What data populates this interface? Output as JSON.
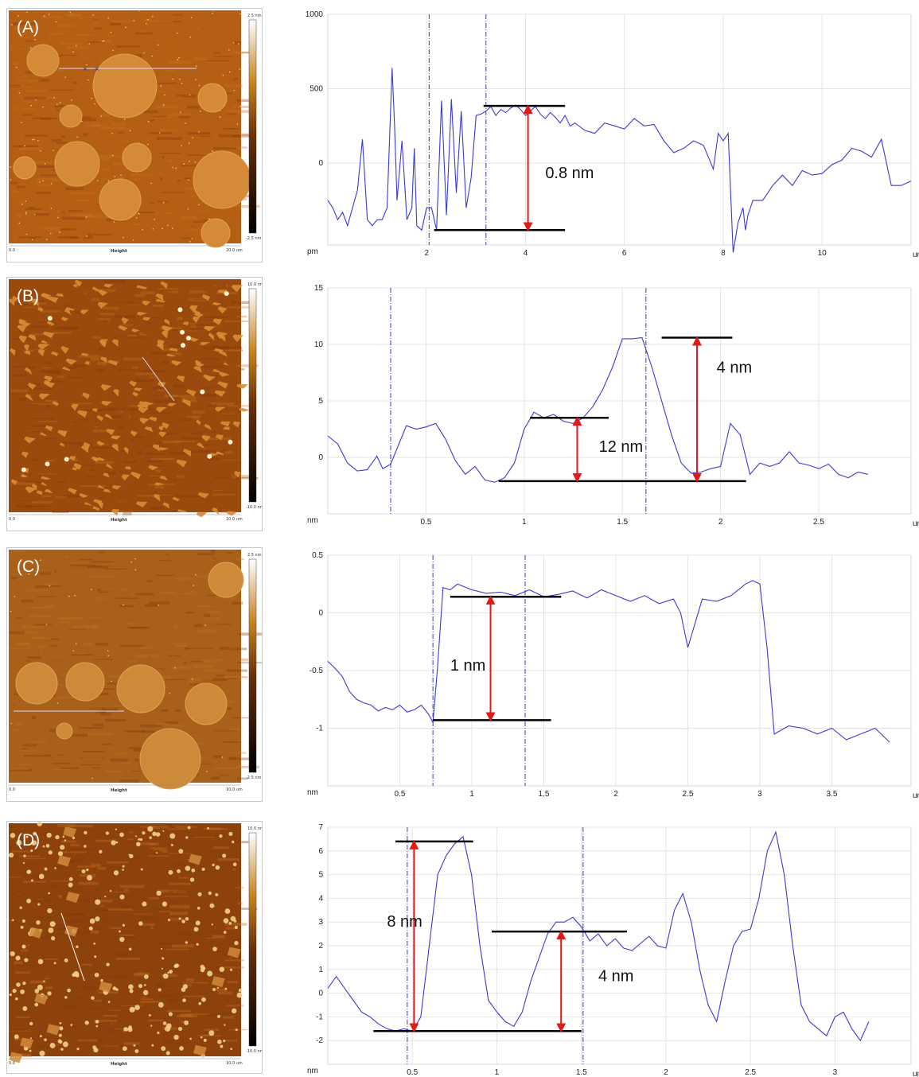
{
  "panels": [
    {
      "label": "(A)",
      "afm": {
        "image_label": "Height",
        "scale_top": "2.5 nm",
        "scale_bottom": "-2.5 nm",
        "axis_start": "0.0",
        "axis_end": "20.0 um",
        "tone": "flat"
      },
      "chart_data": {
        "type": "line",
        "y_unit": "pm",
        "x_unit": "um",
        "xlim": [
          0,
          11.8
        ],
        "ylim": [
          -550,
          1000
        ],
        "xticks": [
          2,
          4,
          6,
          8,
          10
        ],
        "yticks": [
          0,
          500,
          1000
        ],
        "x": [
          0.0,
          0.1,
          0.2,
          0.3,
          0.4,
          0.5,
          0.6,
          0.7,
          0.8,
          0.9,
          1.0,
          1.1,
          1.2,
          1.3,
          1.35,
          1.4,
          1.5,
          1.6,
          1.7,
          1.75,
          1.8,
          1.9,
          2.0,
          2.1,
          2.2,
          2.3,
          2.4,
          2.5,
          2.6,
          2.7,
          2.8,
          2.9,
          3.0,
          3.1,
          3.2,
          3.3,
          3.4,
          3.5,
          3.6,
          3.7,
          3.8,
          3.9,
          4.0,
          4.1,
          4.2,
          4.3,
          4.4,
          4.5,
          4.6,
          4.7,
          4.8,
          4.9,
          5.0,
          5.2,
          5.4,
          5.6,
          5.8,
          6.0,
          6.2,
          6.4,
          6.6,
          6.8,
          7.0,
          7.2,
          7.4,
          7.6,
          7.8,
          7.9,
          8.0,
          8.1,
          8.2,
          8.3,
          8.4,
          8.45,
          8.5,
          8.6,
          8.8,
          9.0,
          9.2,
          9.4,
          9.6,
          9.8,
          10.0,
          10.2,
          10.4,
          10.6,
          10.8,
          11.0,
          11.2,
          11.4,
          11.6,
          11.8
        ],
        "y": [
          -250,
          -300,
          -380,
          -330,
          -420,
          -300,
          -180,
          160,
          -380,
          -420,
          -380,
          -380,
          -300,
          640,
          250,
          -250,
          150,
          -380,
          -300,
          100,
          -420,
          -450,
          -300,
          -300,
          -450,
          420,
          -350,
          430,
          -200,
          350,
          -300,
          -100,
          320,
          330,
          350,
          380,
          320,
          360,
          340,
          370,
          390,
          360,
          320,
          350,
          380,
          330,
          300,
          340,
          310,
          270,
          320,
          250,
          270,
          220,
          200,
          270,
          250,
          230,
          300,
          250,
          260,
          150,
          70,
          100,
          150,
          120,
          -40,
          200,
          150,
          200,
          -600,
          -400,
          -300,
          -450,
          -350,
          -250,
          -250,
          -150,
          -80,
          -150,
          -50,
          -80,
          -70,
          -10,
          20,
          100,
          80,
          40,
          160,
          -150,
          -150,
          -120
        ],
        "annotations": [
          {
            "text": "0.8 nm"
          }
        ]
      }
    },
    {
      "label": "(B)",
      "afm": {
        "image_label": "Height",
        "scale_top": "10.0 nm",
        "scale_bottom": "-10.0 nm",
        "axis_start": "0.0",
        "axis_end": "10.0 um",
        "tone": "flakes"
      },
      "chart_data": {
        "type": "line",
        "y_unit": "nm",
        "x_unit": "um",
        "xlim": [
          0,
          2.97
        ],
        "ylim": [
          -5,
          15
        ],
        "xticks": [
          0.5,
          1,
          1.5,
          2,
          2.5
        ],
        "yticks": [
          0,
          5,
          10,
          15
        ],
        "x": [
          0.0,
          0.05,
          0.1,
          0.15,
          0.2,
          0.25,
          0.28,
          0.32,
          0.4,
          0.45,
          0.5,
          0.55,
          0.6,
          0.65,
          0.7,
          0.75,
          0.8,
          0.85,
          0.9,
          0.95,
          1.0,
          1.05,
          1.1,
          1.15,
          1.2,
          1.25,
          1.3,
          1.35,
          1.4,
          1.45,
          1.5,
          1.55,
          1.6,
          1.65,
          1.7,
          1.75,
          1.8,
          1.85,
          1.9,
          1.95,
          2.0,
          2.05,
          2.1,
          2.15,
          2.2,
          2.25,
          2.3,
          2.35,
          2.4,
          2.45,
          2.5,
          2.55,
          2.6,
          2.65,
          2.7,
          2.75
        ],
        "y": [
          1.9,
          1.2,
          -0.5,
          -1.2,
          -1.1,
          0.1,
          -1.0,
          -0.6,
          2.8,
          2.5,
          2.7,
          3.0,
          1.6,
          -0.3,
          -1.5,
          -0.8,
          -2.0,
          -2.2,
          -1.8,
          -0.5,
          2.5,
          4.0,
          3.5,
          3.8,
          3.2,
          3.0,
          3.5,
          4.5,
          6.0,
          8.0,
          10.5,
          10.5,
          10.6,
          8.0,
          5.0,
          2.0,
          -0.5,
          -1.4,
          -1.3,
          -1.0,
          -0.8,
          3.0,
          2.0,
          -1.5,
          -0.5,
          -0.8,
          -0.5,
          0.5,
          -0.5,
          -0.7,
          -1.0,
          -0.6,
          -1.5,
          -1.8,
          -1.3,
          -1.5
        ],
        "annotations": [
          {
            "text": "12 nm"
          },
          {
            "text": "4 nm"
          }
        ]
      }
    },
    {
      "label": "(C)",
      "afm": {
        "image_label": "Height",
        "scale_top": "2.5 nm",
        "scale_bottom": "-2.5 nm",
        "axis_start": "0.0",
        "axis_end": "10.0 um",
        "tone": "islands"
      },
      "chart_data": {
        "type": "line",
        "y_unit": "nm",
        "x_unit": "um",
        "xlim": [
          0,
          4.05
        ],
        "ylim": [
          -1.5,
          0.5
        ],
        "xticks": [
          0.5,
          1,
          1.5,
          2,
          2.5,
          3,
          3.5
        ],
        "yticks": [
          -1,
          -0.5,
          0,
          0.5
        ],
        "x": [
          0.0,
          0.05,
          0.1,
          0.15,
          0.2,
          0.25,
          0.3,
          0.35,
          0.4,
          0.45,
          0.5,
          0.55,
          0.6,
          0.65,
          0.7,
          0.73,
          0.76,
          0.8,
          0.85,
          0.9,
          1.0,
          1.1,
          1.2,
          1.3,
          1.4,
          1.5,
          1.6,
          1.7,
          1.8,
          1.9,
          2.0,
          2.1,
          2.2,
          2.3,
          2.4,
          2.45,
          2.5,
          2.6,
          2.7,
          2.8,
          2.9,
          2.95,
          3.0,
          3.05,
          3.1,
          3.2,
          3.3,
          3.4,
          3.5,
          3.6,
          3.7,
          3.8,
          3.9
        ],
        "y": [
          -0.42,
          -0.48,
          -0.55,
          -0.68,
          -0.75,
          -0.78,
          -0.8,
          -0.85,
          -0.82,
          -0.84,
          -0.8,
          -0.86,
          -0.84,
          -0.8,
          -0.88,
          -0.95,
          -0.5,
          0.22,
          0.2,
          0.25,
          0.2,
          0.17,
          0.18,
          0.15,
          0.2,
          0.14,
          0.16,
          0.19,
          0.13,
          0.2,
          0.15,
          0.1,
          0.15,
          0.08,
          0.12,
          0.0,
          -0.3,
          0.12,
          0.1,
          0.15,
          0.25,
          0.28,
          0.25,
          -0.3,
          -1.05,
          -0.98,
          -1.0,
          -1.05,
          -1.0,
          -1.1,
          -1.05,
          -1.0,
          -1.12
        ],
        "annotations": [
          {
            "text": "1 nm"
          }
        ]
      }
    },
    {
      "label": "(D)",
      "afm": {
        "image_label": "Height",
        "scale_top": "10.0 nm",
        "scale_bottom": "-10.0 nm",
        "axis_start": "0.0",
        "axis_end": "10.0 um",
        "tone": "dots"
      },
      "chart_data": {
        "type": "line",
        "y_unit": "nm",
        "x_unit": "um",
        "xlim": [
          0,
          3.45
        ],
        "ylim": [
          -3,
          7
        ],
        "xticks": [
          0.5,
          1,
          1.5,
          2,
          2.5,
          3
        ],
        "yticks": [
          -2,
          -1,
          0,
          1,
          2,
          3,
          4,
          5,
          6,
          7
        ],
        "x": [
          0.0,
          0.05,
          0.1,
          0.15,
          0.2,
          0.25,
          0.3,
          0.35,
          0.4,
          0.45,
          0.5,
          0.55,
          0.6,
          0.65,
          0.7,
          0.75,
          0.8,
          0.85,
          0.9,
          0.95,
          1.0,
          1.05,
          1.1,
          1.15,
          1.2,
          1.25,
          1.3,
          1.35,
          1.4,
          1.45,
          1.5,
          1.55,
          1.6,
          1.65,
          1.7,
          1.75,
          1.8,
          1.85,
          1.9,
          1.95,
          2.0,
          2.05,
          2.1,
          2.15,
          2.2,
          2.25,
          2.3,
          2.35,
          2.4,
          2.45,
          2.5,
          2.55,
          2.6,
          2.65,
          2.7,
          2.75,
          2.8,
          2.85,
          2.9,
          2.95,
          3.0,
          3.05,
          3.1,
          3.15,
          3.2
        ],
        "y": [
          0.2,
          0.7,
          0.2,
          -0.3,
          -0.8,
          -1.0,
          -1.3,
          -1.5,
          -1.6,
          -1.5,
          -1.6,
          -1.0,
          2.0,
          5.0,
          5.8,
          6.3,
          6.6,
          5.0,
          2.0,
          -0.3,
          -0.8,
          -1.2,
          -1.4,
          -0.8,
          0.5,
          1.5,
          2.5,
          3.0,
          3.0,
          3.2,
          2.8,
          2.2,
          2.5,
          2.0,
          2.3,
          1.9,
          1.8,
          2.1,
          2.4,
          2.0,
          1.9,
          3.5,
          4.2,
          3.0,
          1.0,
          -0.5,
          -1.2,
          0.5,
          2.0,
          2.6,
          2.7,
          4.0,
          6.0,
          6.8,
          5.0,
          2.0,
          -0.5,
          -1.2,
          -1.5,
          -1.8,
          -1.0,
          -0.8,
          -1.5,
          -2.0,
          -1.2
        ],
        "annotations": [
          {
            "text": "8 nm"
          },
          {
            "text": "4 nm"
          }
        ]
      }
    }
  ]
}
